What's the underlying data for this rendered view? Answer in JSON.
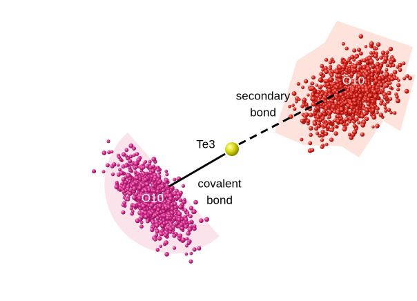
{
  "nodes": [
    {
      "label": "Te3"
    },
    {
      "label": "O10"
    },
    {
      "label": "O10"
    }
  ],
  "bonds": [
    {
      "label_lines": [
        "covalent",
        "bond"
      ]
    },
    {
      "label_lines": [
        "secondary",
        "bond"
      ]
    }
  ]
}
